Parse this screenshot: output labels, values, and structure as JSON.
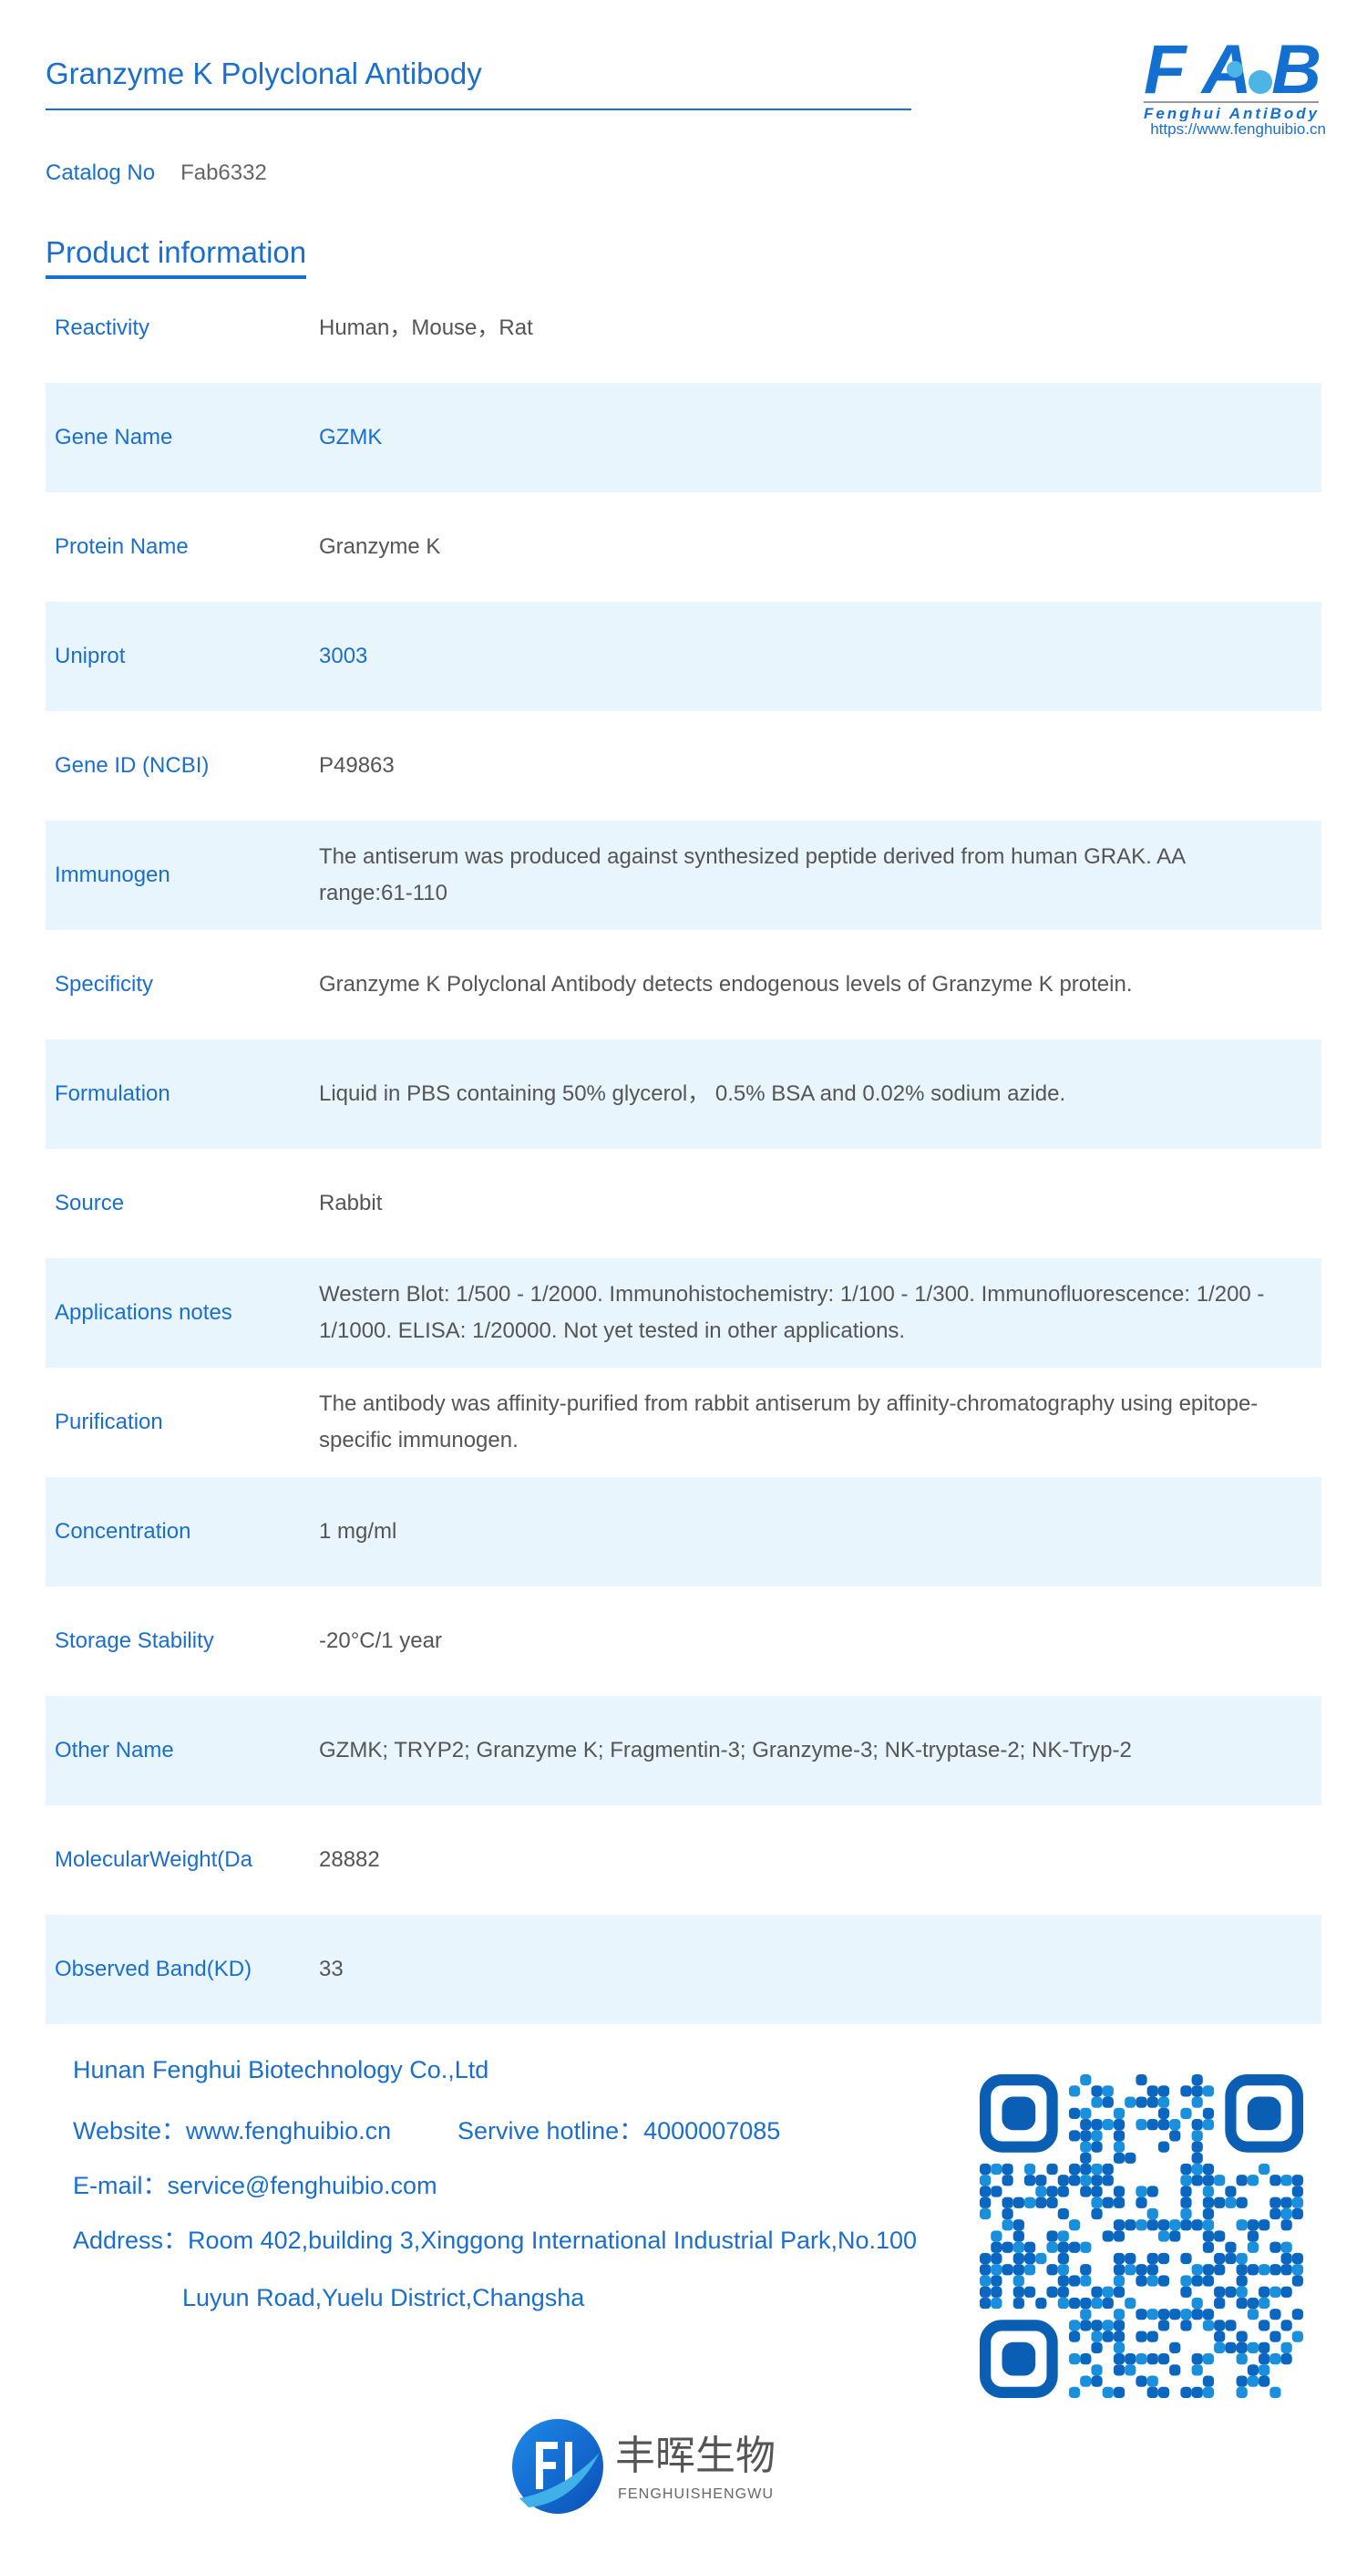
{
  "header": {
    "title": "Granzyme K Polyclonal Antibody",
    "logo_text": "FAB",
    "logo_subtitle": "Fenghui AntiBody",
    "logo_url": "https://www.fenghuibio.cn"
  },
  "catalog": {
    "label": "Catalog No",
    "value": "Fab6332"
  },
  "section_title": "Product information",
  "rows": [
    {
      "label": "Reactivity",
      "value": "Human，Mouse，Rat"
    },
    {
      "label": "Gene Name",
      "value": "GZMK",
      "link": true
    },
    {
      "label": "Protein Name",
      "value": "Granzyme K"
    },
    {
      "label": "Uniprot",
      "value": "3003",
      "link": true
    },
    {
      "label": "Gene ID (NCBI)",
      "value": "P49863"
    },
    {
      "label": "Immunogen",
      "value": "The antiserum was produced against synthesized peptide derived from human GRAK. AA range:61-110"
    },
    {
      "label": "Specificity",
      "value": "Granzyme K Polyclonal Antibody detects endogenous levels of Granzyme K protein."
    },
    {
      "label": "Formulation",
      "value": "Liquid in PBS containing 50% glycerol， 0.5% BSA and 0.02% sodium azide."
    },
    {
      "label": "Source",
      "value": "Rabbit"
    },
    {
      "label": "Applications notes",
      "value": "Western Blot: 1/500 - 1/2000. Immunohistochemistry: 1/100 - 1/300. Immunofluorescence: 1/200 - 1/1000. ELISA: 1/20000. Not yet tested in other applications."
    },
    {
      "label": "Purification",
      "value": "The antibody was affinity-purified from rabbit antiserum by affinity-chromatography using epitope-specific immunogen."
    },
    {
      "label": "Concentration",
      "value": "1 mg/ml"
    },
    {
      "label": "Storage Stability",
      "value": "-20°C/1 year"
    },
    {
      "label": "Other Name",
      "value": "GZMK; TRYP2; Granzyme K; Fragmentin-3; Granzyme-3; NK-tryptase-2; NK-Tryp-2"
    },
    {
      "label": "MolecularWeight(Da",
      "value": "28882"
    },
    {
      "label": "Observed Band(KD)",
      "value": "33"
    }
  ],
  "footer": {
    "company": "Hunan Fenghui Biotechnology Co.,Ltd",
    "website": "Website：www.fenghuibio.cn",
    "hotline": "Servive hotline：4000007085",
    "email": "E-mail：service@fenghuibio.com",
    "address1": "Address：Room 402,building 3,Xinggong International Industrial Park,No.100",
    "address2": "Luyun Road,Yuelu District,Changsha"
  },
  "bottom_logo": {
    "cn": "丰晖生物",
    "en": "FENGHUISHENGWU"
  },
  "colors": {
    "accent": "#1a6fce",
    "row_alt": "#e9f5fd",
    "text": "#555555"
  }
}
